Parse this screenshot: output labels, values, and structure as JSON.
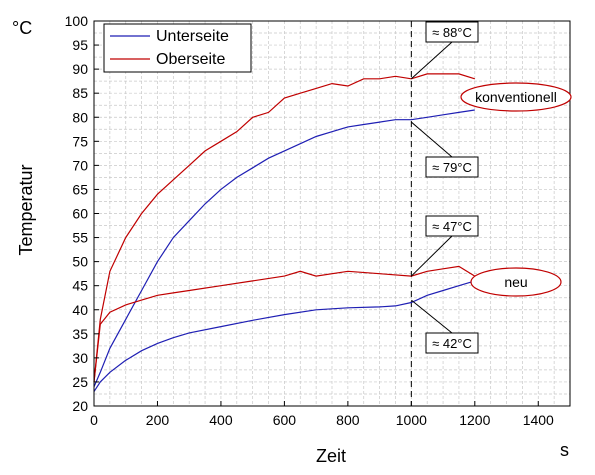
{
  "chart_data": {
    "type": "line",
    "xlabel": "Zeit",
    "x_unit": "s",
    "ylabel": "Temperatur",
    "y_unit": "°C",
    "xlim": [
      0,
      1500
    ],
    "ylim": [
      20,
      100
    ],
    "x_ticks": [
      0,
      200,
      400,
      600,
      800,
      1000,
      1200,
      1400
    ],
    "y_ticks": [
      20,
      25,
      30,
      35,
      40,
      45,
      50,
      55,
      60,
      65,
      70,
      75,
      80,
      85,
      90,
      95,
      100
    ],
    "grid": true,
    "legend_position": "top-left",
    "series": [
      {
        "name": "Unterseite",
        "group": "konventionell",
        "color": "#1f1fb4",
        "x": [
          0,
          20,
          50,
          100,
          150,
          200,
          250,
          300,
          350,
          400,
          450,
          500,
          550,
          600,
          650,
          700,
          750,
          800,
          850,
          900,
          950,
          1000,
          1050,
          1100,
          1150,
          1200
        ],
        "y": [
          24,
          27,
          32,
          38,
          44,
          50,
          55,
          58.5,
          62,
          65,
          67.5,
          69.5,
          71.5,
          73,
          74.5,
          76,
          77,
          78,
          78.5,
          79,
          79.5,
          79.5,
          80,
          80.5,
          81,
          81.5
        ]
      },
      {
        "name": "Oberseite",
        "group": "konventionell",
        "color": "#c00000",
        "x": [
          0,
          20,
          50,
          100,
          150,
          200,
          250,
          300,
          350,
          400,
          450,
          500,
          550,
          600,
          650,
          700,
          750,
          800,
          850,
          900,
          950,
          1000,
          1050,
          1100,
          1150,
          1200
        ],
        "y": [
          25,
          38,
          48,
          55,
          60,
          64,
          67,
          70,
          73,
          75,
          77,
          80,
          81,
          84,
          85,
          86,
          87,
          86.5,
          88,
          88,
          88.5,
          88,
          89,
          89,
          89,
          88
        ]
      },
      {
        "name": "Unterseite",
        "group": "neu",
        "color": "#1f1fb4",
        "x": [
          0,
          20,
          50,
          100,
          150,
          200,
          250,
          300,
          400,
          500,
          600,
          700,
          800,
          900,
          950,
          1000,
          1050,
          1100,
          1150,
          1200
        ],
        "y": [
          23,
          25,
          27,
          29.5,
          31.5,
          33,
          34.2,
          35.2,
          36.5,
          37.8,
          39,
          40,
          40.4,
          40.6,
          40.8,
          41.5,
          43,
          44,
          45,
          46
        ]
      },
      {
        "name": "Oberseite",
        "group": "neu",
        "color": "#c00000",
        "x": [
          0,
          20,
          50,
          100,
          150,
          200,
          250,
          300,
          400,
          500,
          600,
          650,
          700,
          800,
          900,
          1000,
          1050,
          1100,
          1150,
          1200
        ],
        "y": [
          25,
          37,
          39.5,
          41,
          42,
          43,
          43.5,
          44,
          45,
          46,
          47,
          48,
          47,
          48,
          47.5,
          47,
          48,
          48.5,
          49,
          47
        ]
      }
    ],
    "annotations": [
      {
        "text": "≈ 88°C",
        "x": 1000,
        "y": 88
      },
      {
        "text": "≈ 79°C",
        "x": 1000,
        "y": 79
      },
      {
        "text": "≈ 47°C",
        "x": 1000,
        "y": 47
      },
      {
        "text": "≈ 42°C",
        "x": 1000,
        "y": 42
      }
    ],
    "vertical_marker_x": 1000,
    "group_labels": [
      {
        "text": "konventionell",
        "y": 85
      },
      {
        "text": "neu",
        "y": 46
      }
    ]
  }
}
